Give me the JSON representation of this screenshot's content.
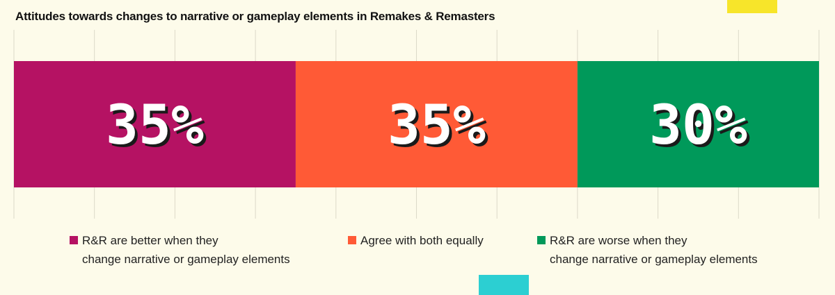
{
  "chart_data": {
    "type": "bar",
    "orientation": "horizontal-stacked",
    "title": "Attitudes towards changes to narrative or gameplay elements in Remakes & Remasters",
    "unit": "%",
    "categories": [
      "R&R are better when they change narrative or gameplay elements",
      "Agree with both equally",
      "R&R are worse when they change narrative or gameplay elements"
    ],
    "values": [
      35,
      35,
      30
    ],
    "labels": [
      "35%",
      "35%",
      "30%"
    ],
    "colors": [
      "#b51263",
      "#ff5a36",
      "#00995a"
    ],
    "legend": {
      "position": "bottom",
      "items": [
        {
          "line1": "R&R are better when they",
          "line2": "change narrative or gameplay elements"
        },
        {
          "line1": "Agree with both equally",
          "line2": ""
        },
        {
          "line1": "R&R are worse when they",
          "line2": "change narrative or gameplay elements"
        }
      ]
    },
    "grid": true
  },
  "decor": {
    "yellow": "#f7e52a",
    "cyan": "#2ccfd2"
  }
}
